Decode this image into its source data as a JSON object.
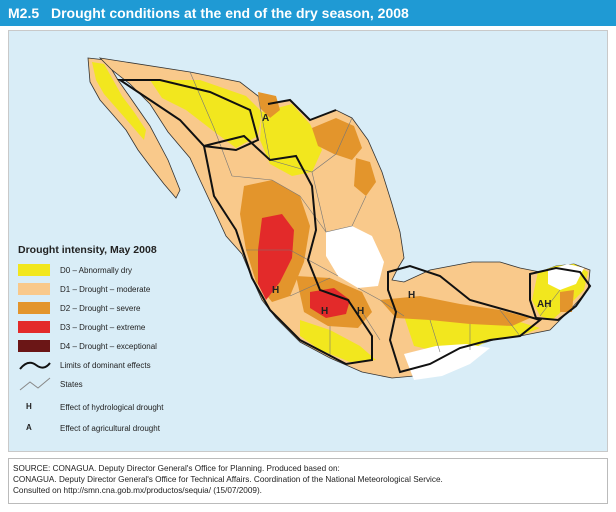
{
  "header": {
    "number": "M2.5",
    "title": "Drought conditions at the end of the dry season, 2008",
    "color": "#1f9ad4"
  },
  "legend": {
    "title": "Drought intensity, May 2008",
    "items": [
      {
        "code": "D0",
        "label": "D0 – Abnormally dry",
        "color": "#f2e71e"
      },
      {
        "code": "D1",
        "label": "D1 – Drought – moderate",
        "color": "#f9c98b"
      },
      {
        "code": "D2",
        "label": "D2 – Drought – severe",
        "color": "#e3952c"
      },
      {
        "code": "D3",
        "label": "D3 – Drought – extreme",
        "color": "#e32a2a"
      },
      {
        "code": "D4",
        "label": "D4 – Drought – exceptional",
        "color": "#6b1616"
      }
    ],
    "limits": "Limits of dominant effects",
    "states": "States",
    "hydro_symbol": "H",
    "hydro": "Effect of hydrological drought",
    "agri_symbol": "A",
    "agri": "Effect of agricultural drought"
  },
  "map_labels": {
    "a": "A",
    "h1": "H",
    "h2": "H",
    "h3": "H",
    "h4": "H",
    "ah": "AH"
  },
  "source": {
    "line1": "SOURCE: CONAGUA. Deputy Director General's Office for Planning. Produced based on:",
    "line2": "CONAGUA. Deputy Director General's Office for Technical Affairs. Coordination of the National Meteorological Service.",
    "line3": "Consulted on http://smn.cna.gob.mx/productos/sequia/ (15/07/2009)."
  }
}
